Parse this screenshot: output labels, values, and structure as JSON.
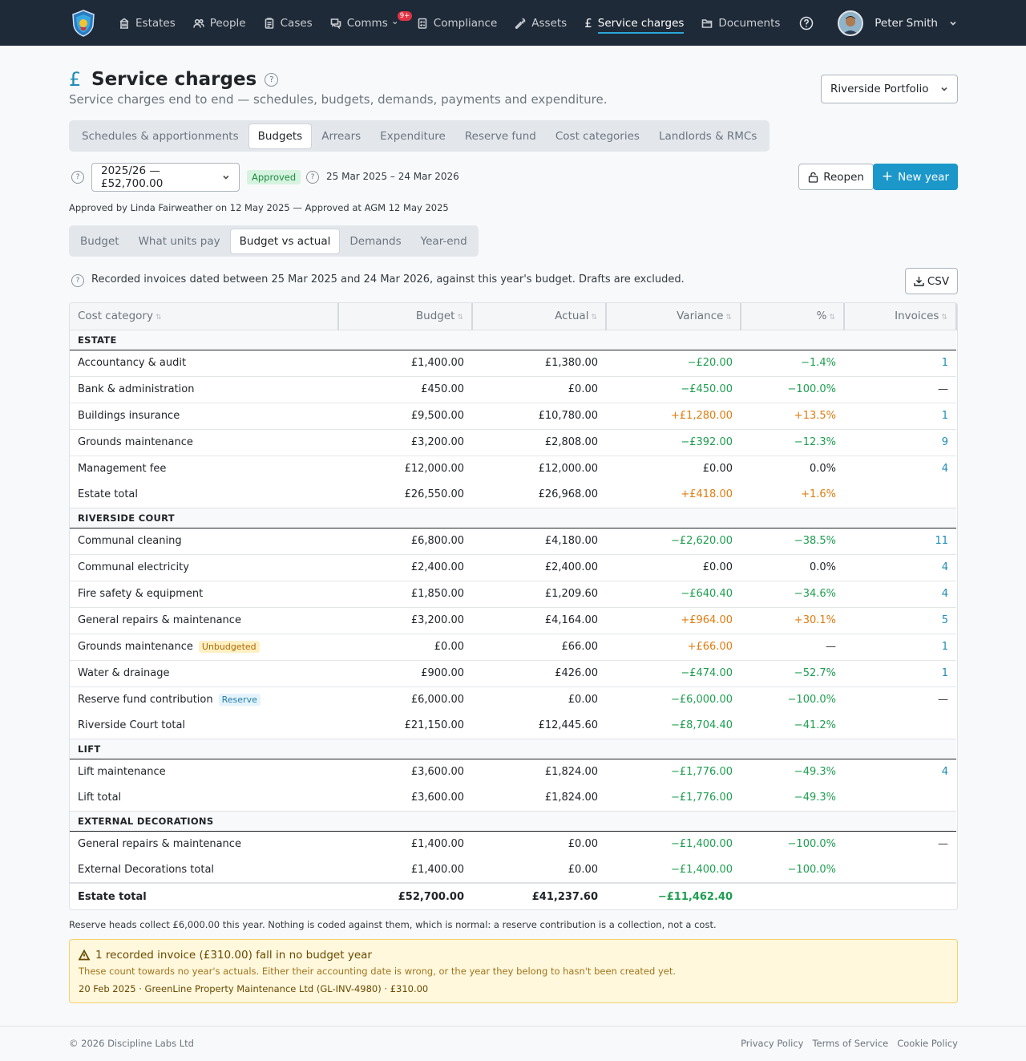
{
  "nav": {
    "items": [
      {
        "label": "Estates",
        "icon": "building-icon"
      },
      {
        "label": "People",
        "icon": "people-icon"
      },
      {
        "label": "Cases",
        "icon": "clipboard-icon"
      },
      {
        "label": "Comms",
        "icon": "chat-icon",
        "badge": "9+"
      },
      {
        "label": "Compliance",
        "icon": "checklist-icon"
      },
      {
        "label": "Assets",
        "icon": "wrench-icon"
      },
      {
        "label": "Service charges",
        "icon": "pound-icon"
      },
      {
        "label": "Documents",
        "icon": "folder-icon"
      }
    ],
    "user_name": "Peter Smith"
  },
  "page": {
    "title": "Service charges",
    "subtitle": "Service charges end to end — schedules, budgets, demands, payments and expenditure.",
    "portfolio": "Riverside Portfolio"
  },
  "tabs_main": [
    "Schedules & apportionments",
    "Budgets",
    "Arrears",
    "Expenditure",
    "Reserve fund",
    "Cost categories",
    "Landlords & RMCs"
  ],
  "tabs_main_active": "Budgets",
  "year": {
    "selected": "2025/26 — £52,700.00",
    "status": "Approved",
    "period": "25 Mar 2025 – 24 Mar 2026",
    "reopen_label": "Reopen",
    "new_year_label": "New year",
    "approval_note": "Approved by Linda Fairweather on 12 May 2025 — Approved at AGM 12 May 2025"
  },
  "tabs_sub": [
    "Budget",
    "What units pay",
    "Budget vs actual",
    "Demands",
    "Year-end"
  ],
  "tabs_sub_active": "Budget vs actual",
  "info_text": "Recorded invoices dated between 25 Mar 2025 and 24 Mar 2026, against this year's budget. Drafts are excluded.",
  "csv_label": "CSV",
  "table": {
    "headers": [
      "Cost category",
      "Budget",
      "Actual",
      "Variance",
      "%",
      "Invoices"
    ],
    "groups": [
      {
        "name": "ESTATE",
        "rows": [
          {
            "category": "Accountancy & audit",
            "budget": "£1,400.00",
            "actual": "£1,380.00",
            "variance": "−£20.00",
            "pct": "−1.4%",
            "invoices": "1",
            "tone": "green"
          },
          {
            "category": "Bank & administration",
            "budget": "£450.00",
            "actual": "£0.00",
            "variance": "−£450.00",
            "pct": "−100.0%",
            "invoices": "—",
            "tone": "green"
          },
          {
            "category": "Buildings insurance",
            "budget": "£9,500.00",
            "actual": "£10,780.00",
            "variance": "+£1,280.00",
            "pct": "+13.5%",
            "invoices": "1",
            "tone": "orange"
          },
          {
            "category": "Grounds maintenance",
            "budget": "£3,200.00",
            "actual": "£2,808.00",
            "variance": "−£392.00",
            "pct": "−12.3%",
            "invoices": "9",
            "tone": "green"
          },
          {
            "category": "Management fee",
            "budget": "£12,000.00",
            "actual": "£12,000.00",
            "variance": "£0.00",
            "pct": "0.0%",
            "invoices": "4",
            "tone": "neutral"
          }
        ],
        "total": {
          "label": "Estate total",
          "budget": "£26,550.00",
          "actual": "£26,968.00",
          "variance": "+£418.00",
          "pct": "+1.6%",
          "tone": "orange"
        }
      },
      {
        "name": "RIVERSIDE COURT",
        "rows": [
          {
            "category": "Communal cleaning",
            "budget": "£6,800.00",
            "actual": "£4,180.00",
            "variance": "−£2,620.00",
            "pct": "−38.5%",
            "invoices": "11",
            "tone": "green"
          },
          {
            "category": "Communal electricity",
            "budget": "£2,400.00",
            "actual": "£2,400.00",
            "variance": "£0.00",
            "pct": "0.0%",
            "invoices": "4",
            "tone": "neutral"
          },
          {
            "category": "Fire safety & equipment",
            "budget": "£1,850.00",
            "actual": "£1,209.60",
            "variance": "−£640.40",
            "pct": "−34.6%",
            "invoices": "4",
            "tone": "green"
          },
          {
            "category": "General repairs & maintenance",
            "budget": "£3,200.00",
            "actual": "£4,164.00",
            "variance": "+£964.00",
            "pct": "+30.1%",
            "invoices": "5",
            "tone": "orange"
          },
          {
            "category": "Grounds maintenance",
            "tag": "Unbudgeted",
            "budget": "£0.00",
            "actual": "£66.00",
            "variance": "+£66.00",
            "pct": "—",
            "invoices": "1",
            "tone": "orange"
          },
          {
            "category": "Water & drainage",
            "budget": "£900.00",
            "actual": "£426.00",
            "variance": "−£474.00",
            "pct": "−52.7%",
            "invoices": "1",
            "tone": "green"
          },
          {
            "category": "Reserve fund contribution",
            "tag": "Reserve",
            "budget": "£6,000.00",
            "actual": "£0.00",
            "variance": "−£6,000.00",
            "pct": "−100.0%",
            "invoices": "—",
            "tone": "green"
          }
        ],
        "total": {
          "label": "Riverside Court total",
          "budget": "£21,150.00",
          "actual": "£12,445.60",
          "variance": "−£8,704.40",
          "pct": "−41.2%",
          "tone": "green"
        }
      },
      {
        "name": "LIFT",
        "rows": [
          {
            "category": "Lift maintenance",
            "budget": "£3,600.00",
            "actual": "£1,824.00",
            "variance": "−£1,776.00",
            "pct": "−49.3%",
            "invoices": "4",
            "tone": "green"
          }
        ],
        "total": {
          "label": "Lift total",
          "budget": "£3,600.00",
          "actual": "£1,824.00",
          "variance": "−£1,776.00",
          "pct": "−49.3%",
          "tone": "green"
        }
      },
      {
        "name": "EXTERNAL DECORATIONS",
        "rows": [
          {
            "category": "General repairs & maintenance",
            "budget": "£1,400.00",
            "actual": "£0.00",
            "variance": "−£1,400.00",
            "pct": "−100.0%",
            "invoices": "—",
            "tone": "green"
          }
        ],
        "total": {
          "label": "External Decorations total",
          "budget": "£1,400.00",
          "actual": "£0.00",
          "variance": "−£1,400.00",
          "pct": "−100.0%",
          "tone": "green"
        }
      }
    ],
    "grand_total": {
      "label": "Estate total",
      "budget": "£52,700.00",
      "actual": "£41,237.60",
      "variance": "−£11,462.40"
    }
  },
  "reserve_note": "Reserve heads collect £6,000.00 this year. Nothing is coded against them, which is normal: a reserve contribution is a collection, not a cost.",
  "alert": {
    "title": "1 recorded invoice (£310.00) fall in no budget year",
    "body": "These count towards no year's actuals. Either their accounting date is wrong, or the year they belong to hasn't been created yet.",
    "detail": "20 Feb 2025 · GreenLine Property Maintenance Ltd (GL-INV-4980) · £310.00"
  },
  "footer": {
    "copyright": "© 2026 Discipline Labs Ltd",
    "links": [
      "Privacy Policy",
      "Terms of Service",
      "Cookie Policy"
    ]
  },
  "colors": {
    "accent": "#1c97c9",
    "navbar": "#1f2a38",
    "positive": "#1e9e50",
    "negative": "#e07c10"
  }
}
